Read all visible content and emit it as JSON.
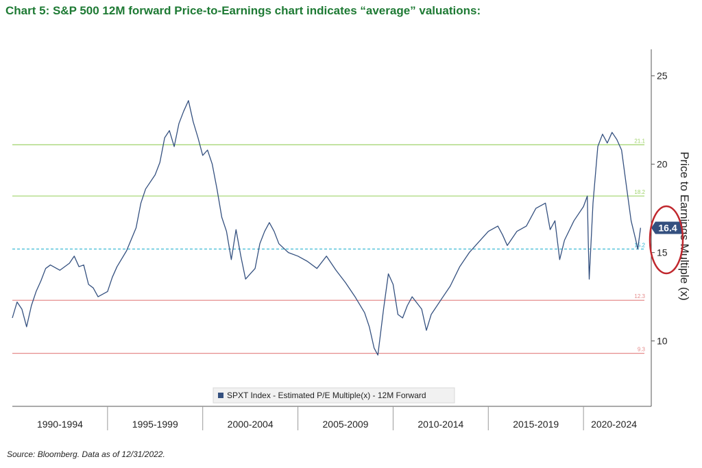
{
  "title": "Chart 5: S&P 500 12M forward Price-to-Earnings chart indicates “average” valuations:",
  "source": "Source: Bloomberg. Data as of 12/31/2022.",
  "colors": {
    "title": "#1e7a34",
    "series": "#34507f",
    "upper_band": "#9fd36a",
    "lower_band": "#e58b8b",
    "average": "#2bb3d1",
    "highlight": "#c0272d",
    "badge": "#34507f"
  },
  "chart_data": {
    "type": "line",
    "title": "Chart 5: S&P 500 12M forward Price-to-Earnings chart indicates “average” valuations:",
    "xlabel": "",
    "ylabel": "Price to Earnings Multiple (x)",
    "ylim": [
      6.3,
      26.5
    ],
    "xlim": [
      1990.0,
      2023.2
    ],
    "y_ticks": [
      10,
      15,
      20,
      25
    ],
    "period_labels": [
      "1990-1994",
      "1995-1999",
      "2000-2004",
      "2005-2009",
      "2010-2014",
      "2015-2019",
      "2020-2024"
    ],
    "period_bounds": [
      1995.0,
      2000.0,
      2005.0,
      2010.0,
      2015.0,
      2020.0
    ],
    "reference_lines": [
      {
        "value": 21.1,
        "label": "21.1",
        "kind": "upper"
      },
      {
        "value": 18.2,
        "label": "18.2",
        "kind": "upper"
      },
      {
        "value": 15.2,
        "label": "15.2",
        "kind": "average"
      },
      {
        "value": 12.3,
        "label": "12.3",
        "kind": "lower"
      },
      {
        "value": 9.3,
        "label": "9.3",
        "kind": "lower"
      }
    ],
    "last_value_label": "16.4",
    "legend": "SPXT Index - Estimated P/E Multiple(x) - 12M Forward",
    "series": [
      {
        "name": "SPXT Index - Estimated P/E Multiple(x) - 12M Forward",
        "x": [
          1990.0,
          1990.25,
          1990.5,
          1990.75,
          1991.0,
          1991.25,
          1991.5,
          1991.75,
          1992.0,
          1992.5,
          1993.0,
          1993.25,
          1993.5,
          1993.75,
          1994.0,
          1994.25,
          1994.5,
          1995.0,
          1995.25,
          1995.5,
          1996.0,
          1996.5,
          1996.75,
          1997.0,
          1997.5,
          1997.75,
          1998.0,
          1998.25,
          1998.5,
          1998.75,
          1999.0,
          1999.25,
          1999.5,
          1999.75,
          2000.0,
          2000.25,
          2000.5,
          2000.75,
          2001.0,
          2001.25,
          2001.5,
          2001.75,
          2002.0,
          2002.25,
          2002.5,
          2002.75,
          2003.0,
          2003.25,
          2003.5,
          2003.75,
          2004.0,
          2004.5,
          2005.0,
          2005.5,
          2006.0,
          2006.5,
          2007.0,
          2007.5,
          2008.0,
          2008.5,
          2008.75,
          2009.0,
          2009.2,
          2009.5,
          2009.75,
          2010.0,
          2010.25,
          2010.5,
          2010.75,
          2011.0,
          2011.5,
          2011.75,
          2012.0,
          2012.5,
          2013.0,
          2013.5,
          2014.0,
          2014.5,
          2015.0,
          2015.5,
          2015.75,
          2016.0,
          2016.5,
          2017.0,
          2017.5,
          2018.0,
          2018.25,
          2018.5,
          2018.75,
          2019.0,
          2019.5,
          2020.0,
          2020.2,
          2020.25,
          2020.3,
          2020.5,
          2020.75,
          2021.0,
          2021.25,
          2021.5,
          2021.75,
          2022.0,
          2022.25,
          2022.5,
          2022.75,
          2022.85,
          2023.0
        ],
        "values": [
          11.3,
          12.2,
          11.8,
          10.8,
          12.0,
          12.8,
          13.4,
          14.1,
          14.3,
          14.0,
          14.4,
          14.8,
          14.2,
          14.3,
          13.2,
          13.0,
          12.5,
          12.8,
          13.6,
          14.2,
          15.1,
          16.4,
          17.8,
          18.6,
          19.4,
          20.1,
          21.5,
          21.9,
          21.0,
          22.3,
          23.0,
          23.6,
          22.4,
          21.5,
          20.5,
          20.8,
          20.0,
          18.6,
          17.0,
          16.2,
          14.6,
          16.3,
          14.8,
          13.5,
          13.8,
          14.1,
          15.5,
          16.2,
          16.7,
          16.2,
          15.5,
          15.0,
          14.8,
          14.5,
          14.1,
          14.8,
          14.0,
          13.3,
          12.5,
          11.6,
          10.8,
          9.6,
          9.2,
          11.8,
          13.8,
          13.2,
          11.5,
          11.3,
          12.0,
          12.5,
          11.8,
          10.6,
          11.5,
          12.3,
          13.1,
          14.2,
          15.0,
          15.6,
          16.2,
          16.5,
          16.0,
          15.4,
          16.2,
          16.5,
          17.5,
          17.8,
          16.3,
          16.8,
          14.6,
          15.7,
          16.8,
          17.6,
          18.2,
          15.6,
          13.5,
          17.8,
          21.0,
          21.7,
          21.2,
          21.8,
          21.4,
          20.8,
          18.8,
          16.8,
          15.7,
          15.2,
          16.4
        ]
      }
    ]
  }
}
